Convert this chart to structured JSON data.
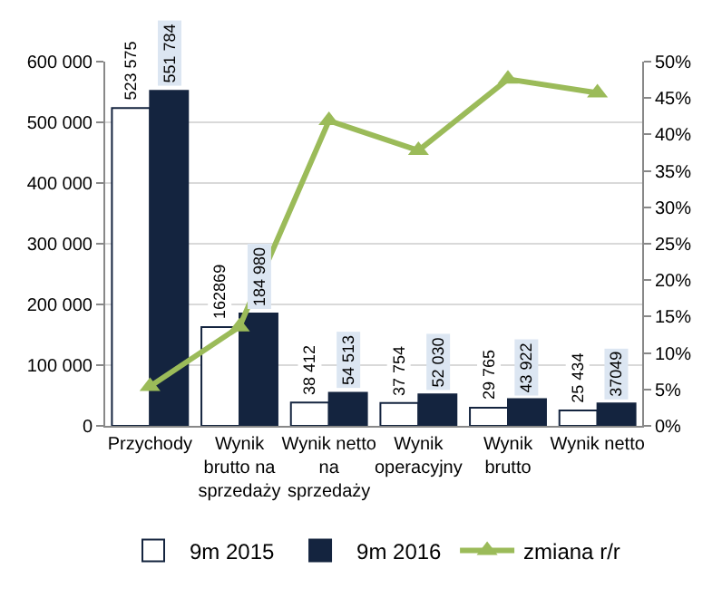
{
  "chart_data": {
    "type": "bar",
    "categories": [
      "Przychody",
      "Wynik brutto na sprzedaży",
      "Wynik netto na sprzedaży",
      "Wynik operacyjny",
      "Wynik brutto",
      "Wynik netto"
    ],
    "series": [
      {
        "name": "9m 2015",
        "color": "#ffffff",
        "values": [
          523575,
          162869,
          38412,
          37754,
          29765,
          25434
        ],
        "value_labels": [
          "523 575",
          "162869",
          "38 412",
          "37 754",
          "29 765",
          "25 434"
        ]
      },
      {
        "name": "9m 2016",
        "color": "#14243f",
        "values": [
          551784,
          184980,
          54513,
          52030,
          43922,
          37049
        ],
        "value_labels": [
          "551 784",
          "184 980",
          "54 513",
          "52 030",
          "43 922",
          "37049"
        ]
      },
      {
        "name": "zmiana r/r",
        "type": "line",
        "axis": "y2",
        "color": "#9bbb59",
        "marker": "triangle",
        "values": [
          5.4,
          13.6,
          41.9,
          37.8,
          47.6,
          45.7
        ]
      }
    ],
    "ylim": [
      0,
      600000
    ],
    "yticks": [
      {
        "value": 0,
        "label": "0"
      },
      {
        "value": 100000,
        "label": "100 000"
      },
      {
        "value": 200000,
        "label": "200 000"
      },
      {
        "value": 300000,
        "label": "300 000"
      },
      {
        "value": 400000,
        "label": "400 000"
      },
      {
        "value": 500000,
        "label": "500 000"
      },
      {
        "value": 600000,
        "label": "600 000"
      }
    ],
    "y2lim": [
      0,
      50
    ],
    "y2ticks": [
      {
        "value": 0,
        "label": "0%"
      },
      {
        "value": 5,
        "label": "5%"
      },
      {
        "value": 10,
        "label": "10%"
      },
      {
        "value": 15,
        "label": "15%"
      },
      {
        "value": 20,
        "label": "20%"
      },
      {
        "value": 25,
        "label": "25%"
      },
      {
        "value": 30,
        "label": "30%"
      },
      {
        "value": 35,
        "label": "35%"
      },
      {
        "value": 40,
        "label": "40%"
      },
      {
        "value": 45,
        "label": "45%"
      },
      {
        "value": 50,
        "label": "50%"
      }
    ],
    "grid": "y",
    "legend": "bottom"
  }
}
